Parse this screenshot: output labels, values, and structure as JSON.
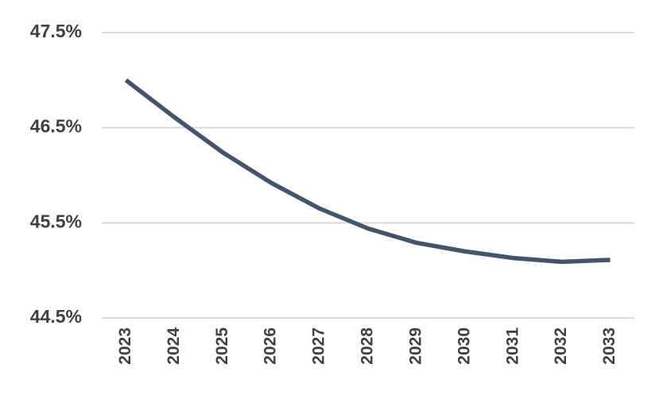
{
  "chart_data": {
    "type": "line",
    "categories": [
      "2023",
      "2024",
      "2025",
      "2026",
      "2027",
      "2028",
      "2029",
      "2030",
      "2031",
      "2032",
      "2033"
    ],
    "series": [
      {
        "color": "#44546a",
        "values": [
          47.0,
          46.61,
          46.24,
          45.92,
          45.65,
          45.44,
          45.29,
          45.2,
          45.13,
          45.09,
          45.11
        ]
      }
    ],
    "ylim": [
      44.5,
      47.5
    ],
    "yticks": [
      {
        "value": 44.5,
        "label": "44.5%"
      },
      {
        "value": 45.5,
        "label": "45.5%"
      },
      {
        "value": 46.5,
        "label": "46.5%"
      },
      {
        "value": 47.5,
        "label": "47.5%"
      }
    ],
    "grid": true
  }
}
